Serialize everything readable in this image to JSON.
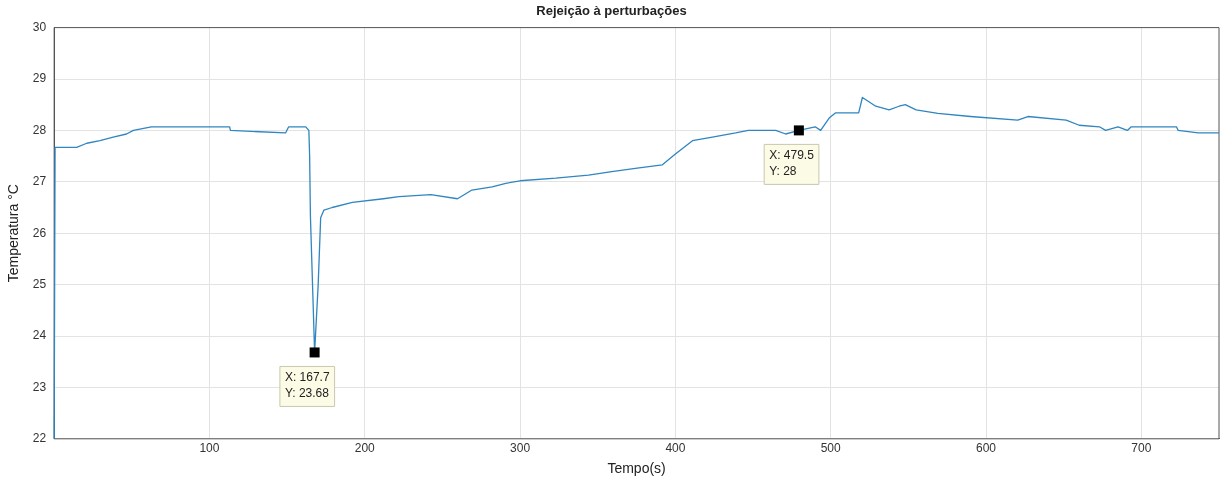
{
  "chart_data": {
    "type": "line",
    "title": "Rejeição à perturbações",
    "xlabel": "Tempo(s)",
    "ylabel": "Temperatura °C",
    "xlim": [
      0,
      750
    ],
    "xticks": [
      100,
      200,
      300,
      400,
      500,
      600,
      700
    ],
    "ylim": [
      22,
      30
    ],
    "yticks": [
      22,
      23,
      24,
      25,
      26,
      27,
      28,
      29,
      30
    ],
    "grid": true,
    "legend": false,
    "marker": "none",
    "line_style": "solid",
    "series": [
      {
        "color": "#2f86c0",
        "x": [
          0,
          0.6,
          14.5,
          21,
          29.5,
          38,
          46.6,
          51,
          62.6,
          113,
          113.5,
          149,
          151,
          162,
          164,
          164.5,
          165,
          167.7,
          170,
          171.6,
          173.7,
          179,
          192,
          212,
          222,
          242.5,
          259.7,
          269,
          282,
          290.8,
          300,
          323,
          344,
          359,
          376.6,
          391.6,
          400,
          411,
          423.8,
          438.8,
          447,
          464.6,
          471,
          479.5,
          490,
          493.5,
          499,
          503,
          518,
          520.4,
          529,
          537.6,
          544,
          548,
          555,
          569,
          590,
          620.4,
          627,
          651.6,
          660,
          673,
          677,
          685,
          691,
          693.5,
          722.6,
          723.7,
          736.6,
          750
        ],
        "values": [
          22,
          27.67,
          27.67,
          27.75,
          27.8,
          27.87,
          27.93,
          28,
          28.07,
          28.07,
          28,
          27.95,
          28.07,
          28.07,
          28,
          27.5,
          26.34,
          23.68,
          25,
          26.3,
          26.45,
          26.5,
          26.6,
          26.67,
          26.71,
          26.75,
          26.67,
          26.84,
          26.9,
          26.97,
          27.02,
          27.07,
          27.13,
          27.2,
          27.27,
          27.33,
          27.54,
          27.8,
          27.87,
          27.95,
          28,
          28,
          27.93,
          28,
          28.07,
          28,
          28.24,
          28.34,
          28.34,
          28.64,
          28.47,
          28.4,
          28.47,
          28.5,
          28.4,
          28.33,
          28.27,
          28.2,
          28.27,
          28.2,
          28.1,
          28.07,
          28,
          28.07,
          28,
          28.07,
          28.07,
          28,
          27.95,
          27.95
        ]
      }
    ],
    "annotations": [
      {
        "text": "X: 167.7\nY: 23.68",
        "x": 167.7,
        "y": 23.68
      },
      {
        "text": "X: 479.5\nY: 28",
        "x": 479.5,
        "y": 28
      }
    ]
  }
}
